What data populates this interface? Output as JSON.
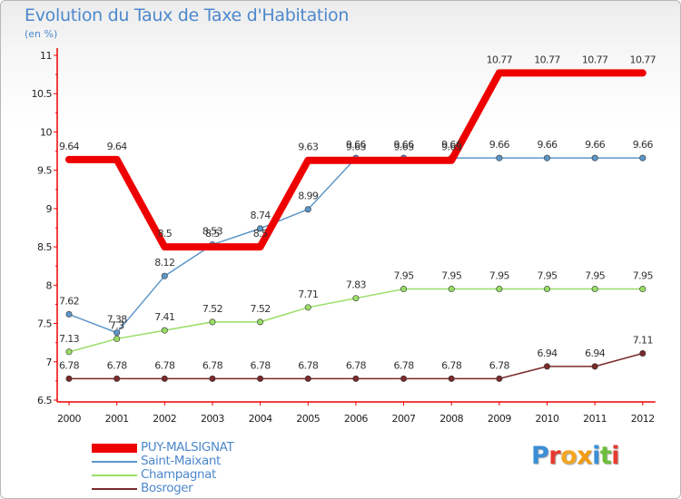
{
  "title": "Evolution du Taux de Taxe d'Habitation",
  "subtitle": "(en %)",
  "logo": "Proxiti",
  "chart_data": {
    "type": "line",
    "title": "Evolution du Taux de Taxe d'Habitation",
    "subtitle": "(en %)",
    "xlabel": "",
    "ylabel": "",
    "ylim": [
      6.5,
      11
    ],
    "yticks": [
      "6.5",
      "7",
      "7.5",
      "8",
      "8.5",
      "9",
      "9.5",
      "10",
      "10.5",
      "11"
    ],
    "categories": [
      "2000",
      "2001",
      "2002",
      "2003",
      "2004",
      "2005",
      "2006",
      "2007",
      "2008",
      "2009",
      "2010",
      "2011",
      "2012"
    ],
    "grid": false,
    "legend_position": "bottom-left",
    "series": [
      {
        "name": "PUY-MALSIGNAT",
        "color": "#ee0000",
        "values": [
          9.64,
          9.64,
          8.5,
          8.5,
          8.5,
          9.63,
          9.63,
          9.63,
          9.63,
          10.77,
          10.77,
          10.77,
          10.77
        ]
      },
      {
        "name": "Saint-Maixant",
        "color": "#5d96c8",
        "values": [
          7.62,
          7.38,
          8.12,
          8.53,
          8.74,
          8.99,
          9.66,
          9.66,
          9.66,
          9.66,
          9.66,
          9.66,
          9.66
        ]
      },
      {
        "name": "Champagnat",
        "color": "#99dd66",
        "values": [
          7.13,
          7.3,
          7.41,
          7.52,
          7.52,
          7.71,
          7.83,
          7.95,
          7.95,
          7.95,
          7.95,
          7.95,
          7.95
        ]
      },
      {
        "name": "Bosroger",
        "color": "#7a2a2a",
        "values": [
          6.78,
          6.78,
          6.78,
          6.78,
          6.78,
          6.78,
          6.78,
          6.78,
          6.78,
          6.78,
          6.94,
          6.94,
          7.11
        ]
      }
    ]
  }
}
